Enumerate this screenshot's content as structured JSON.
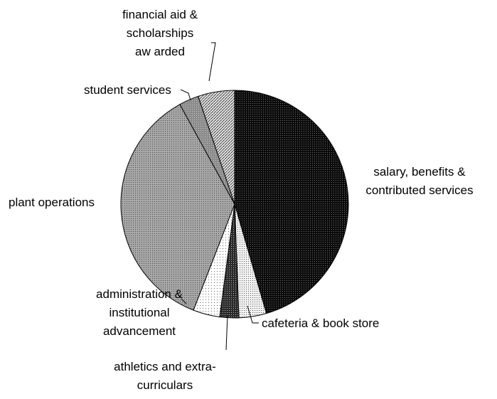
{
  "chart_data": {
    "type": "pie",
    "title": "",
    "slices": [
      {
        "label": [
          "salary, benefits &",
          "contributed services"
        ],
        "value": 45.5,
        "pattern": "dense-black"
      },
      {
        "label": [
          "cafeteria & book store"
        ],
        "value": 3.9,
        "pattern": "light-dots"
      },
      {
        "label": [
          "athletics and extra-",
          "curriculars"
        ],
        "value": 2.7,
        "pattern": "dark-dots"
      },
      {
        "label": [
          "administration &",
          "institutional",
          "advancement"
        ],
        "value": 3.8,
        "pattern": "white-dots"
      },
      {
        "label": [
          "plant operations"
        ],
        "value": 36.1,
        "pattern": "gray-dots"
      },
      {
        "label": [
          "student services"
        ],
        "value": 2.8,
        "pattern": "mid-gray"
      },
      {
        "label": [
          "financial aid &",
          "scholarships",
          "aw arded"
        ],
        "value": 5.2,
        "pattern": "hatch"
      }
    ]
  }
}
